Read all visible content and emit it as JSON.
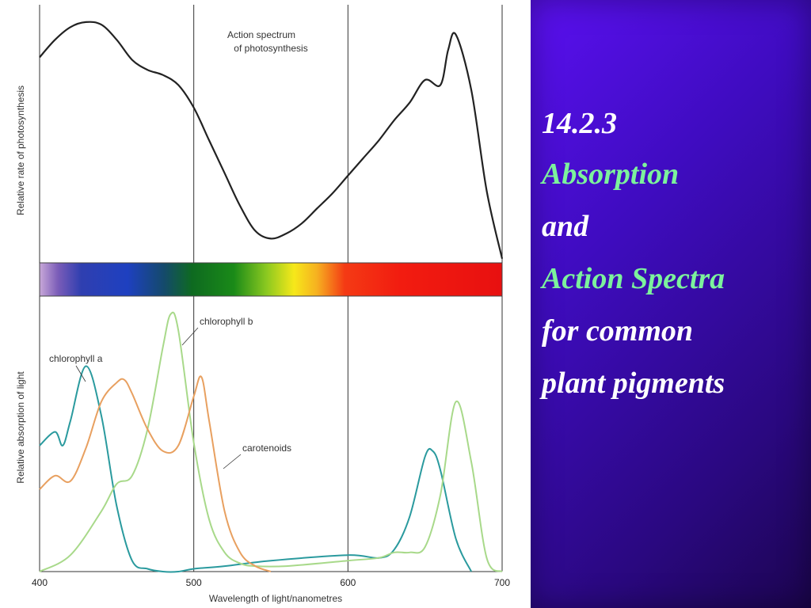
{
  "slide": {
    "lines": [
      {
        "text": "14.2.3",
        "color": "#ffffff"
      },
      {
        "text": "Absorption",
        "color": "#7cf29c"
      },
      {
        "text": "and",
        "color": "#ffffff"
      },
      {
        "text": "Action Spectra",
        "color": "#7cf29c"
      },
      {
        "text": "for common",
        "color": "#ffffff"
      },
      {
        "text": "plant pigments",
        "color": "#ffffff"
      }
    ]
  },
  "chart_data": [
    {
      "type": "line",
      "annotation": [
        "Action spectrum",
        "of photosynthesis"
      ],
      "ylabel": "Relative rate of photosynthesis",
      "xlim": [
        400,
        700
      ],
      "ylim": [
        0,
        1
      ],
      "grid_x": [
        500,
        600,
        700
      ],
      "series": [
        {
          "color": "#222222",
          "x": [
            400,
            410,
            420,
            430,
            440,
            450,
            460,
            470,
            480,
            490,
            500,
            510,
            520,
            530,
            540,
            550,
            560,
            570,
            580,
            590,
            600,
            610,
            620,
            630,
            640,
            650,
            660,
            665,
            670,
            680,
            690,
            700
          ],
          "y": [
            0.81,
            0.88,
            0.93,
            0.95,
            0.94,
            0.88,
            0.8,
            0.76,
            0.74,
            0.7,
            0.61,
            0.48,
            0.35,
            0.22,
            0.12,
            0.09,
            0.11,
            0.15,
            0.21,
            0.27,
            0.34,
            0.41,
            0.48,
            0.56,
            0.63,
            0.72,
            0.7,
            0.84,
            0.9,
            0.68,
            0.28,
            0.01
          ]
        }
      ]
    },
    {
      "type": "line",
      "xlabel": "Wavelength of light/nanometres",
      "ylabel": "Relative absorption of light",
      "xlim": [
        400,
        700
      ],
      "ylim": [
        0,
        1
      ],
      "x_ticks": [
        400,
        500,
        600,
        700
      ],
      "grid_x": [
        500,
        600,
        700
      ],
      "series": [
        {
          "name": "chlorophyll a",
          "color": "#2a9a9e",
          "x": [
            400,
            410,
            415,
            420,
            430,
            440,
            450,
            460,
            470,
            480,
            490,
            500,
            520,
            550,
            600,
            620,
            630,
            640,
            650,
            655,
            660,
            670,
            680
          ],
          "y": [
            0.46,
            0.51,
            0.46,
            0.55,
            0.75,
            0.57,
            0.24,
            0.04,
            0.01,
            0.0,
            0.0,
            0.01,
            0.02,
            0.04,
            0.06,
            0.05,
            0.08,
            0.2,
            0.42,
            0.44,
            0.37,
            0.12,
            0.0
          ]
        },
        {
          "name": "chlorophyll b",
          "color": "#a8d98a",
          "x": [
            400,
            420,
            440,
            450,
            460,
            470,
            480,
            485,
            490,
            500,
            510,
            520,
            530,
            540,
            560,
            600,
            620,
            630,
            640,
            650,
            660,
            670,
            680,
            690,
            700
          ],
          "y": [
            0.0,
            0.06,
            0.22,
            0.32,
            0.35,
            0.52,
            0.82,
            0.94,
            0.88,
            0.47,
            0.19,
            0.07,
            0.03,
            0.02,
            0.02,
            0.04,
            0.05,
            0.07,
            0.07,
            0.09,
            0.28,
            0.62,
            0.4,
            0.05,
            0.0
          ]
        },
        {
          "name": "carotenoids",
          "color": "#e8a060",
          "x": [
            400,
            410,
            420,
            430,
            440,
            450,
            455,
            460,
            470,
            480,
            490,
            500,
            505,
            510,
            520,
            530,
            540,
            550
          ],
          "y": [
            0.3,
            0.35,
            0.33,
            0.45,
            0.62,
            0.69,
            0.7,
            0.65,
            0.52,
            0.44,
            0.46,
            0.64,
            0.71,
            0.55,
            0.22,
            0.07,
            0.02,
            0.0
          ]
        }
      ]
    }
  ]
}
